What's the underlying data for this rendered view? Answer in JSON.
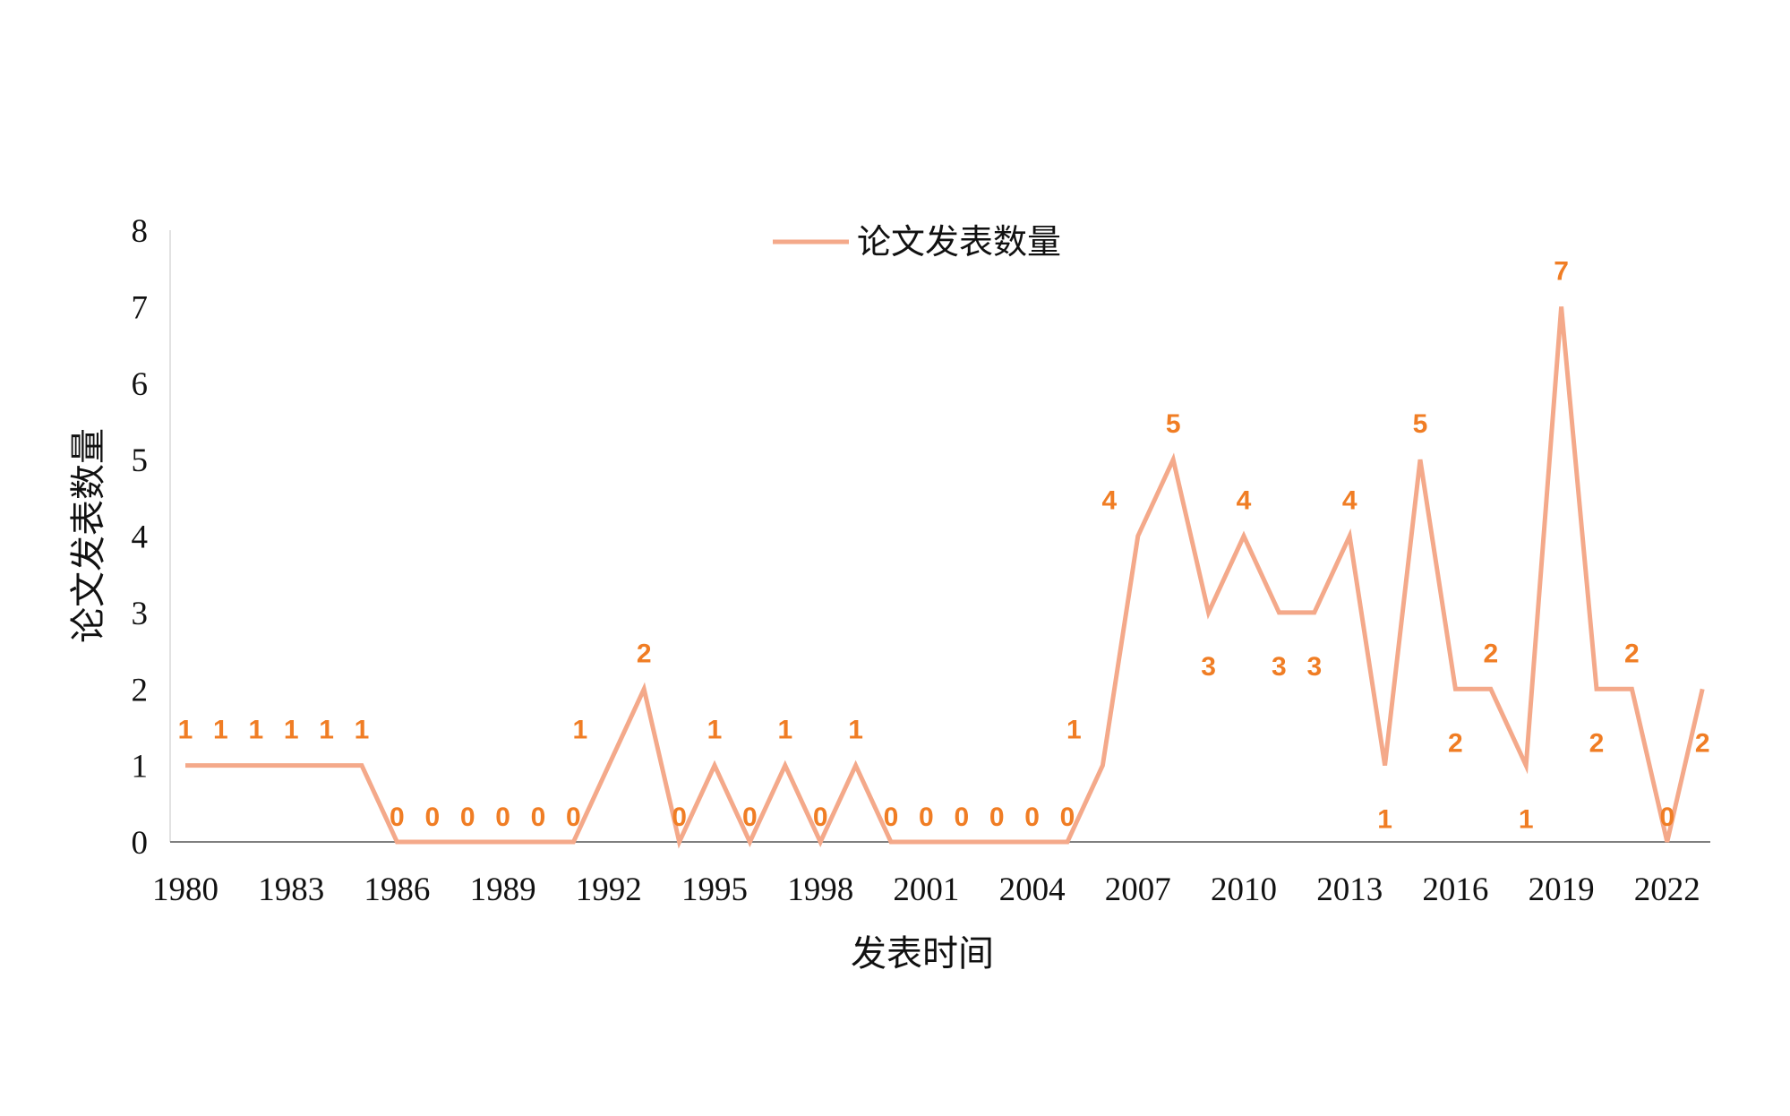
{
  "chart_data": {
    "type": "line",
    "title": "",
    "xlabel": "发表时间",
    "ylabel": "论文发表数量",
    "ylim": [
      0,
      8
    ],
    "xlim": [
      1980,
      2023
    ],
    "yticks": [
      "0",
      "1",
      "2",
      "3",
      "4",
      "5",
      "6",
      "7",
      "8"
    ],
    "xticks": [
      "1980",
      "1983",
      "1986",
      "1989",
      "1992",
      "1995",
      "1998",
      "2001",
      "2004",
      "2007",
      "2010",
      "2013",
      "2016",
      "2019",
      "2022"
    ],
    "legend": {
      "position": "top-center",
      "entries": [
        "论文发表数量"
      ]
    },
    "grid": false,
    "colors": {
      "line": "#f4a98a",
      "labels": "#f07d24",
      "drop_lines": "#4f87d6",
      "axis": "#7f7f7f"
    },
    "x": [
      1980,
      1981,
      1982,
      1983,
      1984,
      1985,
      1986,
      1987,
      1988,
      1989,
      1990,
      1991,
      1992,
      1993,
      1994,
      1995,
      1996,
      1997,
      1998,
      1999,
      2000,
      2001,
      2002,
      2003,
      2004,
      2005,
      2006,
      2007,
      2008,
      2009,
      2010,
      2011,
      2012,
      2013,
      2014,
      2015,
      2016,
      2017,
      2018,
      2019,
      2020,
      2021,
      2022,
      2023
    ],
    "series": [
      {
        "name": "论文发表数量",
        "values": [
          1,
          1,
          1,
          1,
          1,
          1,
          0,
          0,
          0,
          0,
          0,
          0,
          1,
          2,
          0,
          1,
          0,
          1,
          0,
          1,
          0,
          0,
          0,
          0,
          0,
          0,
          1,
          4,
          5,
          3,
          4,
          3,
          3,
          4,
          1,
          5,
          2,
          2,
          1,
          7,
          2,
          2,
          0,
          2
        ]
      }
    ],
    "data_labels": [
      "1",
      "1",
      "1",
      "1",
      "1",
      "1",
      "0",
      "0",
      "0",
      "0",
      "0",
      "0",
      "1",
      "2",
      "0",
      "1",
      "0",
      "1",
      "0",
      "1",
      "0",
      "0",
      "0",
      "0",
      "0",
      "0",
      "1",
      "4",
      "5",
      "3",
      "4",
      "3",
      "3",
      "4",
      "1",
      "5",
      "2",
      "2",
      "1",
      "7",
      "2",
      "2",
      "0",
      "2"
    ]
  }
}
